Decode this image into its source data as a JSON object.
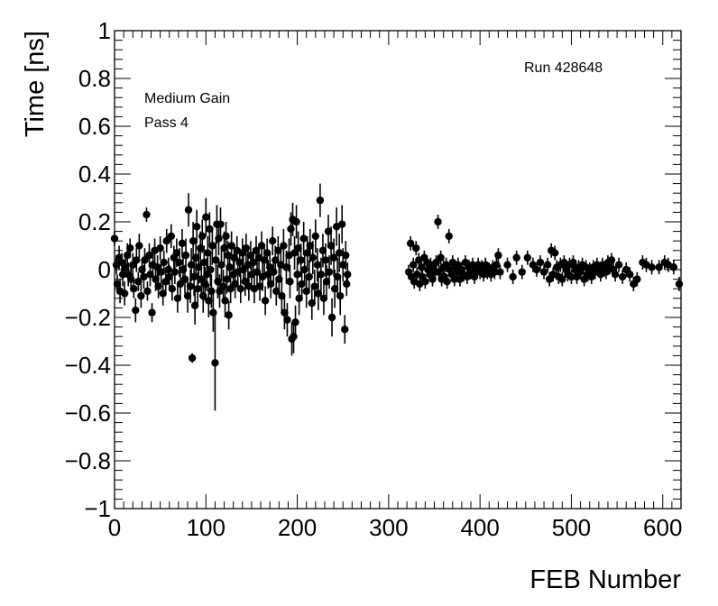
{
  "chart_data": {
    "type": "scatter",
    "xlabel": "FEB Number",
    "ylabel": "Time [ns]",
    "xlim": [
      0,
      620
    ],
    "ylim": [
      -1,
      1
    ],
    "x_ticks": [
      0,
      100,
      200,
      300,
      400,
      500,
      600
    ],
    "y_ticks": [
      -1,
      -0.8,
      -0.6,
      -0.4,
      -0.2,
      0,
      0.2,
      0.4,
      0.6,
      0.8,
      1
    ],
    "x_tick_labels": [
      "0",
      "100",
      "200",
      "300",
      "400",
      "500",
      "600"
    ],
    "y_tick_labels": [
      "−1",
      "−0.8",
      "−0.6",
      "−0.4",
      "−0.2",
      "0",
      "0.2",
      "0.4",
      "0.6",
      "0.8",
      "1"
    ],
    "grid": false,
    "annotations": {
      "gain": "Medium Gain",
      "pass": "Pass 4",
      "run": "Run 428648"
    },
    "marker_color": "#000000",
    "points": [
      [
        0,
        0.13,
        0.03
      ],
      [
        2,
        0.02,
        0.04
      ],
      [
        3,
        -0.06,
        0.04
      ],
      [
        5,
        0.05,
        0.05
      ],
      [
        6,
        -0.09,
        0.05
      ],
      [
        8,
        0.03,
        0.04
      ],
      [
        9,
        -0.02,
        0.05
      ],
      [
        11,
        -0.1,
        0.05
      ],
      [
        12,
        0.01,
        0.04
      ],
      [
        14,
        0.06,
        0.05
      ],
      [
        15,
        -0.02,
        0.05
      ],
      [
        17,
        0.09,
        0.04
      ],
      [
        18,
        -0.04,
        0.05
      ],
      [
        20,
        0.02,
        0.05
      ],
      [
        21,
        -0.08,
        0.04
      ],
      [
        23,
        -0.17,
        0.05
      ],
      [
        24,
        0.04,
        0.05
      ],
      [
        26,
        -0.05,
        0.04
      ],
      [
        27,
        0.1,
        0.05
      ],
      [
        29,
        -0.11,
        0.05
      ],
      [
        30,
        0.0,
        0.04
      ],
      [
        32,
        -0.03,
        0.05
      ],
      [
        33,
        0.04,
        0.05
      ],
      [
        35,
        0.23,
        0.03
      ],
      [
        36,
        -0.09,
        0.04
      ],
      [
        38,
        0.06,
        0.05
      ],
      [
        39,
        -0.02,
        0.05
      ],
      [
        41,
        -0.18,
        0.04
      ],
      [
        42,
        0.02,
        0.05
      ],
      [
        44,
        0.08,
        0.05
      ],
      [
        45,
        -0.04,
        0.05
      ],
      [
        47,
        0.01,
        0.05
      ],
      [
        48,
        -0.07,
        0.05
      ],
      [
        50,
        0.09,
        0.05
      ],
      [
        51,
        -0.01,
        0.05
      ],
      [
        53,
        -0.1,
        0.05
      ],
      [
        54,
        0.03,
        0.05
      ],
      [
        56,
        -0.05,
        0.05
      ],
      [
        57,
        0.12,
        0.05
      ],
      [
        59,
        0.0,
        0.05
      ],
      [
        60,
        -0.03,
        0.05
      ],
      [
        62,
        0.14,
        0.05
      ],
      [
        63,
        -0.08,
        0.05
      ],
      [
        65,
        0.05,
        0.05
      ],
      [
        66,
        -0.01,
        0.05
      ],
      [
        68,
        0.07,
        0.06
      ],
      [
        69,
        -0.12,
        0.06
      ],
      [
        71,
        0.03,
        0.06
      ],
      [
        72,
        -0.06,
        0.06
      ],
      [
        74,
        0.11,
        0.06
      ],
      [
        75,
        0.0,
        0.06
      ],
      [
        77,
        -0.04,
        0.06
      ],
      [
        78,
        0.06,
        0.07
      ],
      [
        80,
        -0.11,
        0.07
      ],
      [
        81,
        0.25,
        0.07
      ],
      [
        83,
        -0.07,
        0.07
      ],
      [
        84,
        0.02,
        0.07
      ],
      [
        85,
        -0.37,
        0.02
      ],
      [
        86,
        0.12,
        0.08
      ],
      [
        87,
        -0.03,
        0.08
      ],
      [
        88,
        -0.15,
        0.08
      ],
      [
        89,
        0.05,
        0.08
      ],
      [
        90,
        0.18,
        0.07
      ],
      [
        91,
        -0.08,
        0.07
      ],
      [
        92,
        0.01,
        0.07
      ],
      [
        94,
        0.09,
        0.07
      ],
      [
        95,
        -0.04,
        0.07
      ],
      [
        96,
        0.14,
        0.07
      ],
      [
        97,
        -0.11,
        0.07
      ],
      [
        98,
        0.03,
        0.07
      ],
      [
        99,
        -0.06,
        0.07
      ],
      [
        100,
        0.22,
        0.08
      ],
      [
        101,
        -0.02,
        0.07
      ],
      [
        102,
        0.07,
        0.07
      ],
      [
        103,
        -0.13,
        0.07
      ],
      [
        104,
        0.17,
        0.07
      ],
      [
        105,
        0.0,
        0.07
      ],
      [
        106,
        -0.09,
        0.07
      ],
      [
        107,
        0.1,
        0.08
      ],
      [
        108,
        -0.18,
        0.08
      ],
      [
        110,
        -0.39,
        0.2
      ],
      [
        111,
        0.04,
        0.08
      ],
      [
        112,
        0.19,
        0.08
      ],
      [
        113,
        -0.05,
        0.07
      ],
      [
        114,
        0.13,
        0.07
      ],
      [
        115,
        -0.09,
        0.07
      ],
      [
        116,
        0.19,
        0.07
      ],
      [
        117,
        0.02,
        0.07
      ],
      [
        119,
        -0.07,
        0.07
      ],
      [
        120,
        0.09,
        0.07
      ],
      [
        121,
        -0.13,
        0.07
      ],
      [
        122,
        0.14,
        0.06
      ],
      [
        123,
        -0.04,
        0.06
      ],
      [
        124,
        0.06,
        0.06
      ],
      [
        125,
        -0.19,
        0.06
      ],
      [
        126,
        0.01,
        0.06
      ],
      [
        127,
        -0.08,
        0.06
      ],
      [
        128,
        0.1,
        0.06
      ],
      [
        130,
        -0.02,
        0.06
      ],
      [
        131,
        0.05,
        0.06
      ],
      [
        132,
        -0.06,
        0.06
      ],
      [
        134,
        0.08,
        0.06
      ],
      [
        135,
        -0.01,
        0.06
      ],
      [
        137,
        0.03,
        0.06
      ],
      [
        138,
        -0.08,
        0.06
      ],
      [
        140,
        0.07,
        0.06
      ],
      [
        141,
        0.0,
        0.06
      ],
      [
        143,
        -0.05,
        0.06
      ],
      [
        144,
        0.09,
        0.06
      ],
      [
        146,
        0.02,
        0.06
      ],
      [
        147,
        -0.07,
        0.06
      ],
      [
        149,
        0.06,
        0.06
      ],
      [
        150,
        -0.02,
        0.06
      ],
      [
        152,
        0.03,
        0.06
      ],
      [
        153,
        -0.08,
        0.06
      ],
      [
        155,
        0.08,
        0.06
      ],
      [
        156,
        -0.01,
        0.06
      ],
      [
        158,
        0.05,
        0.06
      ],
      [
        159,
        -0.07,
        0.06
      ],
      [
        161,
        0.1,
        0.06
      ],
      [
        162,
        -0.03,
        0.06
      ],
      [
        164,
        0.04,
        0.06
      ],
      [
        165,
        -0.13,
        0.06
      ],
      [
        167,
        0.07,
        0.06
      ],
      [
        168,
        -0.02,
        0.06
      ],
      [
        170,
        0.01,
        0.06
      ],
      [
        171,
        -0.06,
        0.06
      ],
      [
        173,
        0.12,
        0.06
      ],
      [
        174,
        -0.01,
        0.06
      ],
      [
        176,
        0.04,
        0.06
      ],
      [
        177,
        -0.09,
        0.06
      ],
      [
        179,
        0.08,
        0.06
      ],
      [
        180,
        -0.04,
        0.06
      ],
      [
        182,
        0.02,
        0.07
      ],
      [
        183,
        -0.11,
        0.07
      ],
      [
        185,
        0.1,
        0.07
      ],
      [
        186,
        -0.18,
        0.07
      ],
      [
        188,
        0.01,
        0.07
      ],
      [
        189,
        -0.21,
        0.07
      ],
      [
        191,
        0.06,
        0.07
      ],
      [
        192,
        -0.05,
        0.07
      ],
      [
        193,
        0.17,
        0.07
      ],
      [
        194,
        -0.29,
        0.07
      ],
      [
        195,
        0.21,
        0.07
      ],
      [
        196,
        -0.28,
        0.07
      ],
      [
        197,
        0.07,
        0.07
      ],
      [
        198,
        -0.22,
        0.07
      ],
      [
        199,
        0.2,
        0.07
      ],
      [
        200,
        -0.02,
        0.07
      ],
      [
        201,
        0.09,
        0.07
      ],
      [
        202,
        -0.12,
        0.07
      ],
      [
        204,
        0.04,
        0.07
      ],
      [
        205,
        -0.06,
        0.07
      ],
      [
        207,
        0.13,
        0.07
      ],
      [
        208,
        0.0,
        0.07
      ],
      [
        210,
        -0.09,
        0.07
      ],
      [
        211,
        0.07,
        0.07
      ],
      [
        213,
        -0.03,
        0.07
      ],
      [
        214,
        0.1,
        0.07
      ],
      [
        216,
        -0.14,
        0.07
      ],
      [
        217,
        0.05,
        0.07
      ],
      [
        219,
        -0.07,
        0.07
      ],
      [
        220,
        0.14,
        0.07
      ],
      [
        222,
        0.02,
        0.07
      ],
      [
        223,
        -0.1,
        0.07
      ],
      [
        225,
        0.29,
        0.07
      ],
      [
        226,
        -0.02,
        0.07
      ],
      [
        228,
        0.08,
        0.07
      ],
      [
        229,
        -0.12,
        0.07
      ],
      [
        231,
        0.04,
        0.07
      ],
      [
        232,
        -0.05,
        0.07
      ],
      [
        234,
        0.16,
        0.07
      ],
      [
        235,
        -0.01,
        0.07
      ],
      [
        237,
        0.1,
        0.08
      ],
      [
        238,
        -0.2,
        0.08
      ],
      [
        240,
        0.05,
        0.08
      ],
      [
        241,
        -0.08,
        0.08
      ],
      [
        243,
        0.18,
        0.08
      ],
      [
        244,
        -0.03,
        0.08
      ],
      [
        246,
        0.07,
        0.08
      ],
      [
        247,
        -0.11,
        0.08
      ],
      [
        249,
        0.19,
        0.08
      ],
      [
        250,
        0.02,
        0.07
      ],
      [
        252,
        -0.25,
        0.06
      ],
      [
        253,
        0.06,
        0.06
      ],
      [
        254,
        -0.06,
        0.05
      ],
      [
        255,
        -0.02,
        0.05
      ],
      [
        322,
        -0.01,
        0.03
      ],
      [
        324,
        0.11,
        0.03
      ],
      [
        325,
        -0.03,
        0.03
      ],
      [
        327,
        0.02,
        0.03
      ],
      [
        328,
        -0.05,
        0.03
      ],
      [
        330,
        0.09,
        0.03
      ],
      [
        331,
        -0.02,
        0.03
      ],
      [
        333,
        0.04,
        0.03
      ],
      [
        334,
        -0.06,
        0.03
      ],
      [
        336,
        0.01,
        0.03
      ],
      [
        337,
        -0.03,
        0.03
      ],
      [
        339,
        0.05,
        0.03
      ],
      [
        340,
        -0.05,
        0.03
      ],
      [
        342,
        0.03,
        0.03
      ],
      [
        343,
        0.0,
        0.03
      ],
      [
        345,
        -0.02,
        0.03
      ],
      [
        346,
        0.02,
        0.03
      ],
      [
        348,
        -0.04,
        0.03
      ],
      [
        349,
        0.01,
        0.03
      ],
      [
        351,
        -0.01,
        0.03
      ],
      [
        352,
        0.03,
        0.03
      ],
      [
        354,
        0.2,
        0.03
      ],
      [
        355,
        -0.01,
        0.03
      ],
      [
        357,
        0.05,
        0.03
      ],
      [
        358,
        -0.04,
        0.03
      ],
      [
        360,
        0.01,
        0.03
      ],
      [
        361,
        -0.03,
        0.03
      ],
      [
        363,
        0.02,
        0.03
      ],
      [
        364,
        -0.05,
        0.03
      ],
      [
        366,
        0.14,
        0.03
      ],
      [
        367,
        0.0,
        0.03
      ],
      [
        369,
        -0.02,
        0.03
      ],
      [
        370,
        0.03,
        0.03
      ],
      [
        372,
        -0.04,
        0.03
      ],
      [
        373,
        0.01,
        0.03
      ],
      [
        375,
        -0.01,
        0.03
      ],
      [
        376,
        0.02,
        0.03
      ],
      [
        378,
        -0.04,
        0.03
      ],
      [
        380,
        0.0,
        0.03
      ],
      [
        382,
        -0.02,
        0.03
      ],
      [
        384,
        0.03,
        0.03
      ],
      [
        386,
        -0.03,
        0.03
      ],
      [
        388,
        0.01,
        0.03
      ],
      [
        390,
        -0.01,
        0.03
      ],
      [
        392,
        0.02,
        0.03
      ],
      [
        394,
        -0.03,
        0.03
      ],
      [
        396,
        0.0,
        0.03
      ],
      [
        398,
        0.02,
        0.03
      ],
      [
        400,
        -0.01,
        0.03
      ],
      [
        402,
        0.01,
        0.03
      ],
      [
        404,
        -0.02,
        0.03
      ],
      [
        406,
        0.02,
        0.03
      ],
      [
        408,
        -0.01,
        0.03
      ],
      [
        410,
        0.0,
        0.03
      ],
      [
        412,
        -0.02,
        0.03
      ],
      [
        414,
        0.01,
        0.03
      ],
      [
        416,
        -0.01,
        0.03
      ],
      [
        418,
        0.02,
        0.03
      ],
      [
        420,
        0.06,
        0.03
      ],
      [
        422,
        -0.01,
        0.03
      ],
      [
        430,
        0.02,
        0.03
      ],
      [
        436,
        -0.03,
        0.03
      ],
      [
        440,
        0.05,
        0.03
      ],
      [
        446,
        -0.01,
        0.03
      ],
      [
        452,
        0.05,
        0.03
      ],
      [
        458,
        0.02,
        0.03
      ],
      [
        462,
        0.0,
        0.03
      ],
      [
        466,
        0.03,
        0.03
      ],
      [
        470,
        -0.01,
        0.03
      ],
      [
        474,
        0.02,
        0.03
      ],
      [
        476,
        -0.04,
        0.03
      ],
      [
        478,
        0.08,
        0.03
      ],
      [
        480,
        -0.02,
        0.03
      ],
      [
        482,
        0.07,
        0.03
      ],
      [
        484,
        0.01,
        0.03
      ],
      [
        486,
        -0.03,
        0.03
      ],
      [
        488,
        0.02,
        0.03
      ],
      [
        490,
        -0.04,
        0.03
      ],
      [
        492,
        0.03,
        0.03
      ],
      [
        494,
        0.0,
        0.03
      ],
      [
        496,
        -0.02,
        0.03
      ],
      [
        498,
        0.02,
        0.03
      ],
      [
        500,
        -0.03,
        0.03
      ],
      [
        502,
        0.03,
        0.03
      ],
      [
        504,
        0.0,
        0.03
      ],
      [
        506,
        -0.03,
        0.03
      ],
      [
        508,
        0.01,
        0.03
      ],
      [
        510,
        -0.01,
        0.03
      ],
      [
        512,
        0.02,
        0.03
      ],
      [
        514,
        -0.04,
        0.03
      ],
      [
        516,
        0.01,
        0.03
      ],
      [
        518,
        -0.02,
        0.03
      ],
      [
        520,
        0.0,
        0.03
      ],
      [
        522,
        -0.03,
        0.03
      ],
      [
        524,
        0.01,
        0.03
      ],
      [
        526,
        -0.01,
        0.03
      ],
      [
        528,
        0.02,
        0.03
      ],
      [
        530,
        0.0,
        0.03
      ],
      [
        532,
        -0.02,
        0.03
      ],
      [
        534,
        0.02,
        0.03
      ],
      [
        536,
        0.0,
        0.03
      ],
      [
        538,
        -0.01,
        0.03
      ],
      [
        540,
        0.03,
        0.03
      ],
      [
        542,
        0.01,
        0.03
      ],
      [
        544,
        0.04,
        0.03
      ],
      [
        546,
        0.0,
        0.03
      ],
      [
        548,
        -0.02,
        0.03
      ],
      [
        552,
        0.02,
        0.03
      ],
      [
        556,
        -0.03,
        0.03
      ],
      [
        560,
        0.0,
        0.03
      ],
      [
        564,
        -0.02,
        0.03
      ],
      [
        568,
        -0.06,
        0.03
      ],
      [
        572,
        -0.04,
        0.03
      ],
      [
        578,
        0.03,
        0.03
      ],
      [
        582,
        0.02,
        0.03
      ],
      [
        588,
        0.01,
        0.03
      ],
      [
        596,
        0.01,
        0.03
      ],
      [
        602,
        0.03,
        0.03
      ],
      [
        606,
        0.02,
        0.03
      ],
      [
        612,
        0.01,
        0.03
      ],
      [
        618,
        -0.06,
        0.03
      ]
    ]
  }
}
